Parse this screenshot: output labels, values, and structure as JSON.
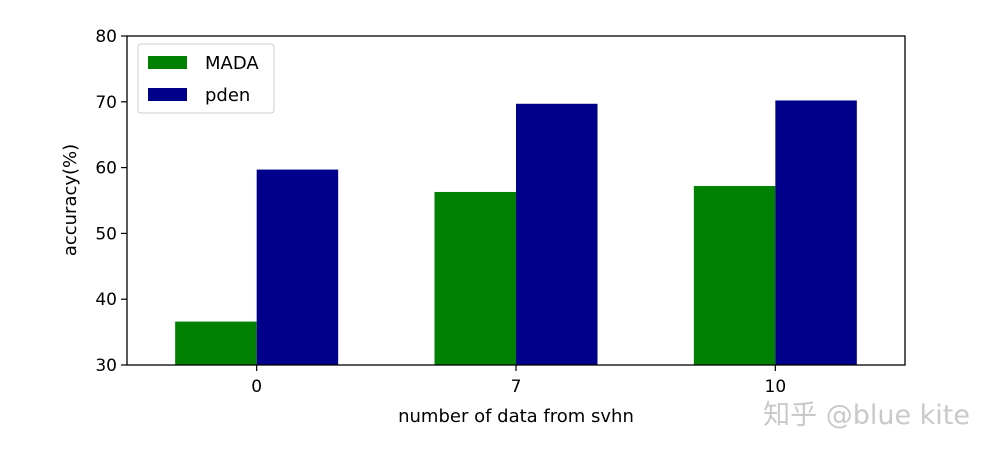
{
  "chart_data": {
    "type": "bar",
    "categories": [
      "0",
      "7",
      "10"
    ],
    "series": [
      {
        "name": "MADA",
        "values": [
          36.6,
          56.3,
          57.2
        ],
        "color": "#008000"
      },
      {
        "name": "pden",
        "values": [
          59.7,
          69.7,
          70.2
        ],
        "color": "#00008b"
      }
    ],
    "xlabel": "number of data from svhn",
    "ylabel": "accuracy(%)",
    "ylim": [
      30,
      80
    ],
    "yticks": [
      30,
      40,
      50,
      60,
      70,
      80
    ],
    "grid": false,
    "legend_position": "top-left"
  },
  "watermark": "知乎 @blue kite"
}
